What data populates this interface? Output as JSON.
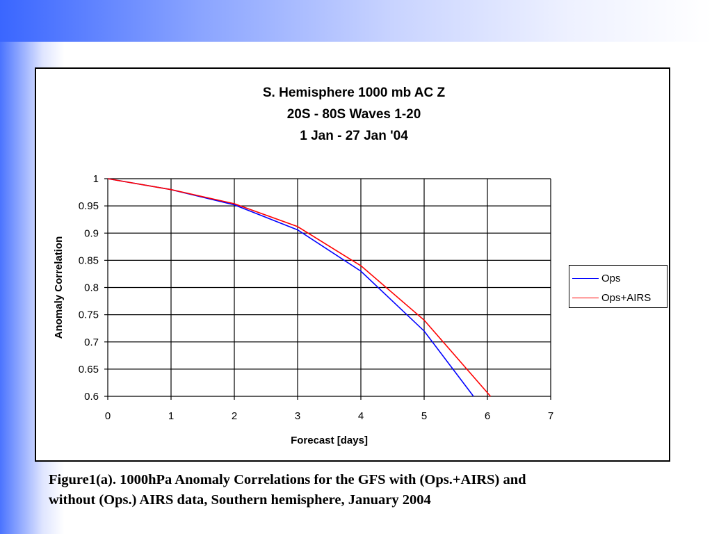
{
  "chart_data": {
    "type": "line",
    "title_lines": [
      "S. Hemisphere 1000 mb AC Z",
      "20S - 80S Waves 1-20",
      "1 Jan - 27 Jan '04"
    ],
    "xlabel": "Forecast [days]",
    "ylabel": "Anomaly Correlation",
    "xlim": [
      0,
      7
    ],
    "ylim": [
      0.6,
      1
    ],
    "x_ticks": [
      "0",
      "1",
      "2",
      "3",
      "4",
      "5",
      "6",
      "7"
    ],
    "y_ticks": [
      "0.6",
      "0.65",
      "0.7",
      "0.75",
      "0.8",
      "0.85",
      "0.9",
      "0.95",
      "1"
    ],
    "grid": true,
    "legend_position": "right",
    "series": [
      {
        "name": "Ops",
        "color": "#0000ff",
        "x": [
          0,
          1,
          2,
          3,
          4,
          5,
          5.78
        ],
        "y": [
          1.0,
          0.98,
          0.952,
          0.906,
          0.83,
          0.72,
          0.6
        ]
      },
      {
        "name": "Ops+AIRS",
        "color": "#ff0000",
        "x": [
          0,
          1,
          2,
          3,
          4,
          5,
          6.05
        ],
        "y": [
          1.0,
          0.98,
          0.954,
          0.912,
          0.84,
          0.74,
          0.6
        ]
      }
    ]
  },
  "caption": {
    "line1": "Figure1(a). 1000hPa Anomaly Correlations for the GFS with (Ops.+AIRS) and",
    "line2": "without (Ops.) AIRS data, Southern hemisphere, January 2004"
  }
}
